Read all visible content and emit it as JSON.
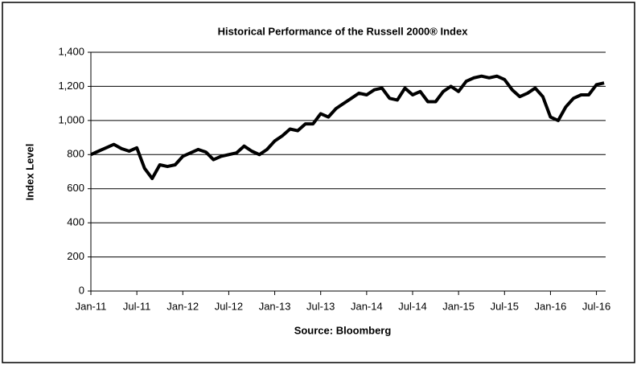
{
  "chart_data": {
    "type": "line",
    "title": "Historical Performance of the Russell 2000® Index",
    "xlabel": "Source:  Bloomberg",
    "ylabel": "Index Level",
    "categories": [
      "Jan-11",
      null,
      null,
      null,
      null,
      null,
      "Jul-11",
      null,
      null,
      null,
      null,
      null,
      "Jan-12",
      null,
      null,
      null,
      null,
      null,
      "Jul-12",
      null,
      null,
      null,
      null,
      null,
      "Jan-13",
      null,
      null,
      null,
      null,
      null,
      "Jul-13",
      null,
      null,
      null,
      null,
      null,
      "Jan-14",
      null,
      null,
      null,
      null,
      null,
      "Jul-14",
      null,
      null,
      null,
      null,
      null,
      "Jan-15",
      null,
      null,
      null,
      null,
      null,
      "Jul-15",
      null,
      null,
      null,
      null,
      null,
      "Jan-16",
      null,
      null,
      null,
      null,
      null,
      "Jul-16",
      null
    ],
    "series": [
      {
        "name": "Russell 2000",
        "color": "#000000",
        "values": [
          800,
          820,
          840,
          860,
          835,
          820,
          840,
          720,
          660,
          740,
          730,
          740,
          790,
          810,
          830,
          815,
          770,
          790,
          800,
          810,
          850,
          820,
          800,
          830,
          880,
          910,
          950,
          940,
          980,
          980,
          1040,
          1020,
          1070,
          1100,
          1130,
          1160,
          1150,
          1180,
          1190,
          1130,
          1120,
          1190,
          1150,
          1170,
          1110,
          1110,
          1170,
          1200,
          1170,
          1230,
          1250,
          1260,
          1250,
          1260,
          1240,
          1180,
          1140,
          1160,
          1190,
          1140,
          1020,
          1000,
          1080,
          1130,
          1150,
          1150,
          1210,
          1220
        ]
      }
    ],
    "ylim": [
      0,
      1400
    ],
    "yticks": [
      0,
      200,
      400,
      600,
      800,
      {
        "value": 1000,
        "label": "1,000"
      },
      {
        "value": 1200,
        "label": "1,200"
      },
      {
        "value": 1400,
        "label": "1,400"
      }
    ],
    "grid": true
  }
}
